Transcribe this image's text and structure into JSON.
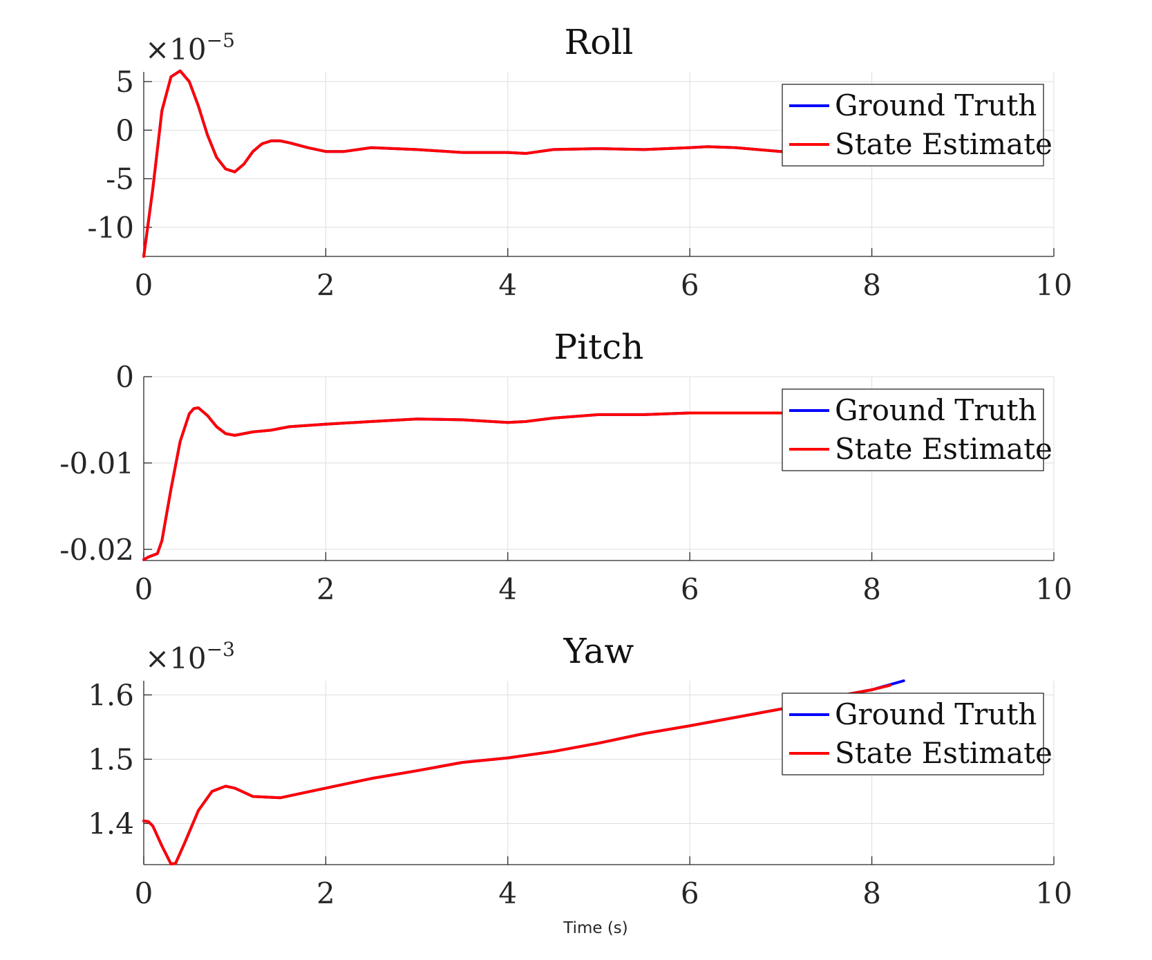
{
  "chart_data": [
    {
      "type": "line",
      "title": "Roll",
      "exponent": {
        "base": "×10",
        "power": "−5"
      },
      "xlim": [
        0,
        10
      ],
      "ylim": [
        -13,
        6
      ],
      "xticks": [
        0,
        2,
        4,
        6,
        8,
        10
      ],
      "xtick_labels": [
        "0",
        "2",
        "4",
        "6",
        "8",
        "10"
      ],
      "yticks": [
        5,
        0,
        -5,
        -10
      ],
      "ytick_labels": [
        "5",
        "0",
        "-5",
        "-10"
      ],
      "grid": true,
      "legend_position": "top-right",
      "series": [
        {
          "name": "Ground Truth",
          "color": "#0000ff",
          "x": [
            0,
            0.1,
            0.2,
            0.3,
            0.4,
            0.5,
            0.6,
            0.7,
            0.8,
            0.9,
            1.0,
            1.1,
            1.2,
            1.3,
            1.4,
            1.5,
            1.6,
            1.8,
            2.0,
            2.2,
            2.5,
            3.0,
            3.5,
            4.0,
            4.2,
            4.5,
            5.0,
            5.5,
            6.0,
            6.2,
            6.5,
            7.0,
            7.5,
            8.0,
            8.4
          ],
          "y": [
            -13,
            -6,
            2,
            5.5,
            6.1,
            5.0,
            2.5,
            -0.5,
            -2.8,
            -4.0,
            -4.3,
            -3.5,
            -2.2,
            -1.4,
            -1.1,
            -1.1,
            -1.3,
            -1.8,
            -2.2,
            -2.2,
            -1.8,
            -2.0,
            -2.3,
            -2.3,
            -2.4,
            -2.0,
            -1.9,
            -2.0,
            -1.8,
            -1.7,
            -1.8,
            -2.2,
            -2.1,
            -2.3,
            -2.2
          ]
        },
        {
          "name": "State Estimate",
          "color": "#ff0000",
          "x": [
            0,
            0.1,
            0.2,
            0.3,
            0.4,
            0.5,
            0.6,
            0.7,
            0.8,
            0.9,
            1.0,
            1.1,
            1.2,
            1.3,
            1.4,
            1.5,
            1.6,
            1.8,
            2.0,
            2.2,
            2.5,
            3.0,
            3.5,
            4.0,
            4.2,
            4.5,
            5.0,
            5.5,
            6.0,
            6.2,
            6.5,
            7.0,
            7.5,
            8.0,
            8.4
          ],
          "y": [
            -13,
            -6,
            2,
            5.5,
            6.1,
            5.0,
            2.5,
            -0.5,
            -2.8,
            -4.0,
            -4.3,
            -3.5,
            -2.2,
            -1.4,
            -1.1,
            -1.1,
            -1.3,
            -1.8,
            -2.2,
            -2.2,
            -1.8,
            -2.0,
            -2.3,
            -2.3,
            -2.4,
            -2.0,
            -1.9,
            -2.0,
            -1.8,
            -1.7,
            -1.8,
            -2.2,
            -2.1,
            -2.3,
            -2.2
          ]
        }
      ]
    },
    {
      "type": "line",
      "title": "Pitch",
      "xlim": [
        0,
        10
      ],
      "ylim": [
        -0.0213,
        0
      ],
      "xticks": [
        0,
        2,
        4,
        6,
        8,
        10
      ],
      "xtick_labels": [
        "0",
        "2",
        "4",
        "6",
        "8",
        "10"
      ],
      "yticks": [
        0,
        -0.01,
        -0.02
      ],
      "ytick_labels": [
        "0",
        "-0.01",
        "-0.02"
      ],
      "grid": true,
      "legend_position": "top-right",
      "series": [
        {
          "name": "Ground Truth",
          "color": "#0000ff",
          "x": [
            0,
            0.05,
            0.15,
            0.2,
            0.3,
            0.4,
            0.5,
            0.55,
            0.6,
            0.7,
            0.8,
            0.9,
            1.0,
            1.1,
            1.2,
            1.4,
            1.6,
            2.0,
            2.5,
            3.0,
            3.5,
            4.0,
            4.2,
            4.5,
            5.0,
            5.5,
            6.0,
            6.5,
            7.0,
            7.5,
            8.0,
            8.4
          ],
          "y": [
            -0.0212,
            -0.0209,
            -0.0205,
            -0.019,
            -0.013,
            -0.0075,
            -0.0043,
            -0.0037,
            -0.0036,
            -0.0045,
            -0.0058,
            -0.0066,
            -0.0068,
            -0.0066,
            -0.0064,
            -0.0062,
            -0.0058,
            -0.0055,
            -0.0052,
            -0.0049,
            -0.005,
            -0.0053,
            -0.0052,
            -0.0048,
            -0.0044,
            -0.0044,
            -0.0042,
            -0.0042,
            -0.0042,
            -0.0042,
            -0.0041,
            -0.004
          ]
        },
        {
          "name": "State Estimate",
          "color": "#ff0000",
          "x": [
            0,
            0.05,
            0.15,
            0.2,
            0.3,
            0.4,
            0.5,
            0.55,
            0.6,
            0.7,
            0.8,
            0.9,
            1.0,
            1.1,
            1.2,
            1.4,
            1.6,
            2.0,
            2.5,
            3.0,
            3.5,
            4.0,
            4.2,
            4.5,
            5.0,
            5.5,
            6.0,
            6.5,
            7.0,
            7.5,
            8.0,
            8.4
          ],
          "y": [
            -0.0212,
            -0.0209,
            -0.0205,
            -0.019,
            -0.013,
            -0.0075,
            -0.0043,
            -0.0037,
            -0.0036,
            -0.0045,
            -0.0058,
            -0.0066,
            -0.0068,
            -0.0066,
            -0.0064,
            -0.0062,
            -0.0058,
            -0.0055,
            -0.0052,
            -0.0049,
            -0.005,
            -0.0053,
            -0.0052,
            -0.0048,
            -0.0044,
            -0.0044,
            -0.0042,
            -0.0042,
            -0.0042,
            -0.0042,
            -0.0041,
            -0.004
          ]
        }
      ]
    },
    {
      "type": "line",
      "title": "Yaw",
      "exponent": {
        "base": "×10",
        "power": "−3"
      },
      "xlim": [
        0,
        10
      ],
      "ylim": [
        1.336,
        1.622
      ],
      "xticks": [
        0,
        2,
        4,
        6,
        8,
        10
      ],
      "xtick_labels": [
        "0",
        "2",
        "4",
        "6",
        "8",
        "10"
      ],
      "yticks": [
        1.6,
        1.5,
        1.4
      ],
      "ytick_labels": [
        "1.6",
        "1.5",
        "1.4"
      ],
      "grid": true,
      "legend_position": "top-right",
      "series": [
        {
          "name": "Ground Truth",
          "color": "#0000ff",
          "x": [
            0,
            0.05,
            0.1,
            0.2,
            0.3,
            0.35,
            0.45,
            0.6,
            0.75,
            0.9,
            1.0,
            1.2,
            1.5,
            1.7,
            2.0,
            2.5,
            3.0,
            3.5,
            4.0,
            4.5,
            5.0,
            5.5,
            6.0,
            6.5,
            7.0,
            7.5,
            8.0,
            8.35
          ],
          "y": [
            1.404,
            1.403,
            1.396,
            1.365,
            1.337,
            1.338,
            1.37,
            1.42,
            1.45,
            1.458,
            1.455,
            1.442,
            1.44,
            1.446,
            1.455,
            1.47,
            1.482,
            1.495,
            1.502,
            1.512,
            1.525,
            1.54,
            1.552,
            1.565,
            1.578,
            1.595,
            1.608,
            1.622
          ]
        },
        {
          "name": "State Estimate",
          "color": "#ff0000",
          "x": [
            0,
            0.05,
            0.1,
            0.2,
            0.3,
            0.35,
            0.45,
            0.6,
            0.75,
            0.9,
            1.0,
            1.2,
            1.5,
            1.7,
            2.0,
            2.5,
            3.0,
            3.5,
            4.0,
            4.5,
            5.0,
            5.5,
            6.0,
            6.5,
            7.0,
            7.5,
            8.0,
            8.2
          ],
          "y": [
            1.404,
            1.403,
            1.396,
            1.365,
            1.337,
            1.338,
            1.37,
            1.42,
            1.45,
            1.458,
            1.455,
            1.442,
            1.44,
            1.446,
            1.455,
            1.47,
            1.482,
            1.495,
            1.502,
            1.512,
            1.525,
            1.54,
            1.552,
            1.565,
            1.578,
            1.595,
            1.608,
            1.615
          ]
        }
      ]
    }
  ],
  "xlabel": "Time (s)"
}
